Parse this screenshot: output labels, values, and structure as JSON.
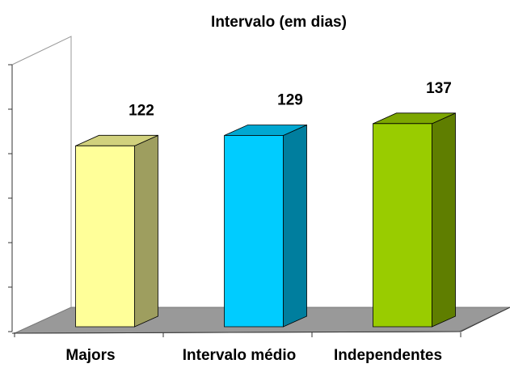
{
  "chart_data": {
    "type": "bar3d",
    "title": "Intervalo (em dias)",
    "categories": [
      "Majors",
      "Intervalo médio",
      "Independentes"
    ],
    "values": [
      122,
      129,
      137
    ],
    "colors": [
      "#ffff99",
      "#00ccff",
      "#99cc00"
    ],
    "ylim": [
      0,
      180
    ],
    "yticks": [
      0,
      30,
      60,
      90,
      120,
      150,
      180
    ]
  }
}
